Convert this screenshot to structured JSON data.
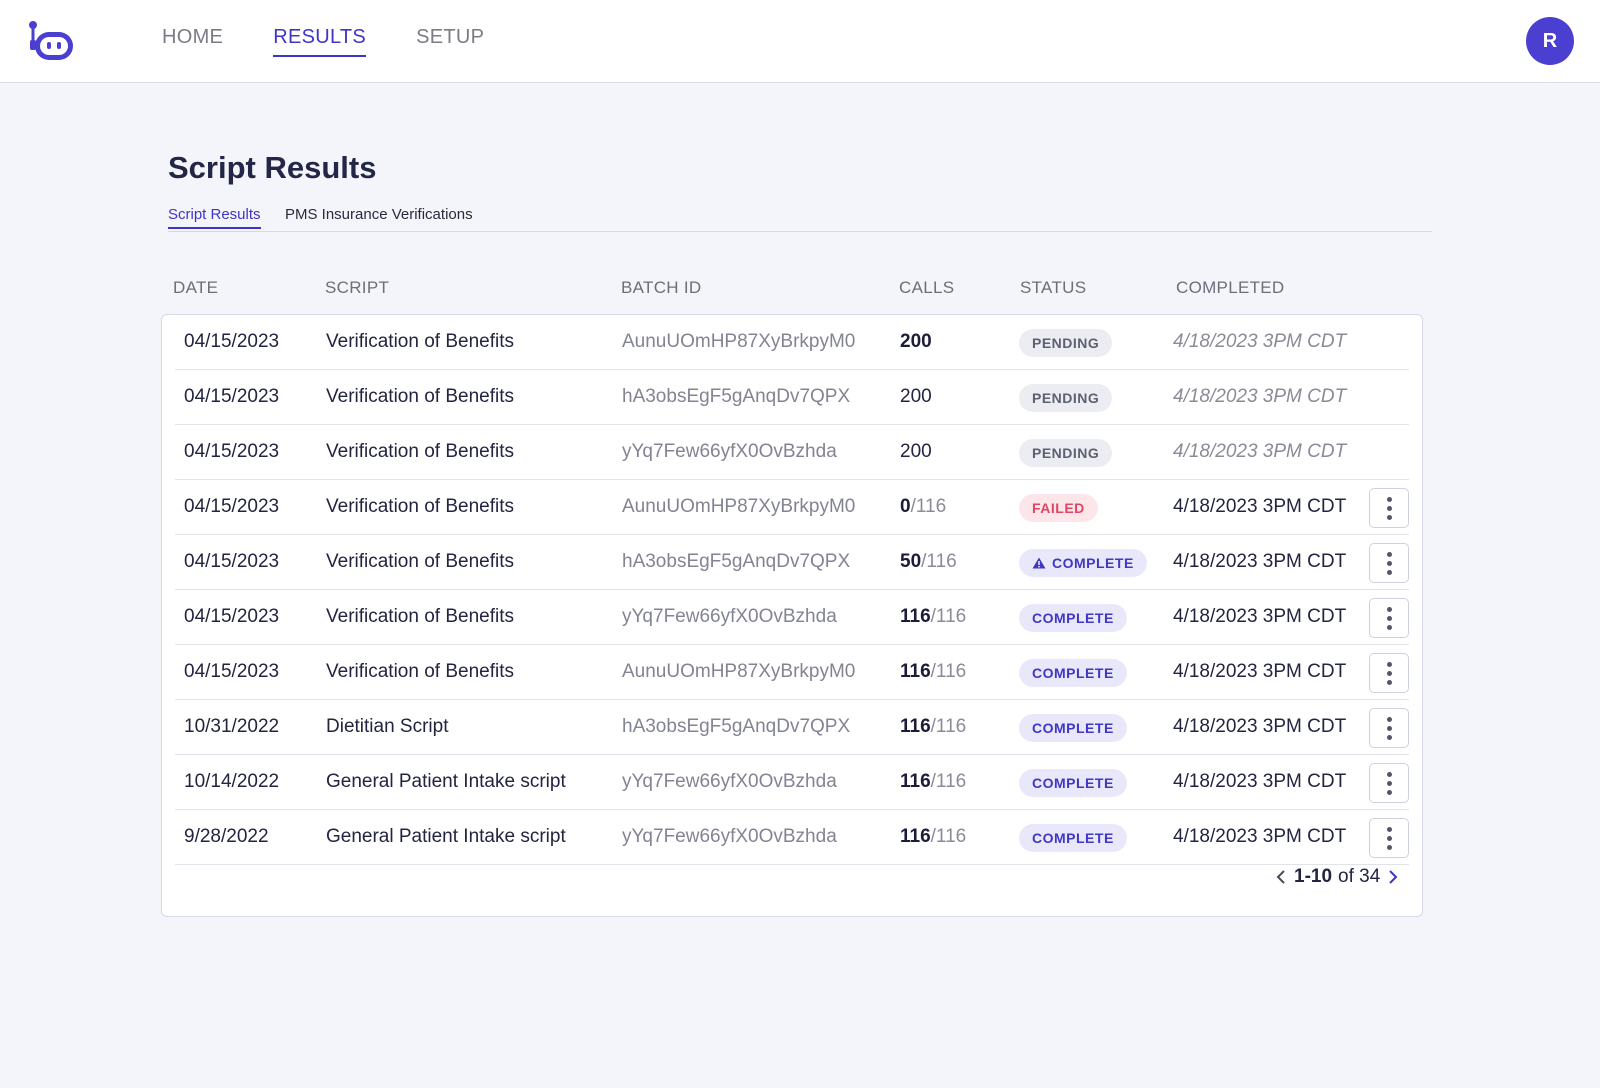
{
  "nav": {
    "items": [
      {
        "label": "HOME",
        "active": false
      },
      {
        "label": "RESULTS",
        "active": true
      },
      {
        "label": "SETUP",
        "active": false
      }
    ],
    "avatar_initial": "R"
  },
  "page": {
    "title": "Script Results",
    "tabs": [
      {
        "label": "Script Results",
        "active": true
      },
      {
        "label": "PMS Insurance Verifications",
        "active": false
      }
    ]
  },
  "table": {
    "columns": {
      "date": "DATE",
      "script": "SCRIPT",
      "batch_id": "BATCH ID",
      "calls": "CALLS",
      "status": "STATUS",
      "completed": "COMPLETED"
    },
    "rows": [
      {
        "date": "04/15/2023",
        "script": "Verification of Benefits",
        "batch_id": "AunuUOmHP87XyBrkpyM0",
        "calls_done": "200",
        "calls_total": "",
        "status": "PENDING",
        "completed": "4/18/2023 3PM CDT"
      },
      {
        "date": "04/15/2023",
        "script": "Verification of Benefits",
        "batch_id": "hA3obsEgF5gAnqDv7QPX",
        "calls_done": "200",
        "calls_total": "",
        "status": "PENDING",
        "completed": "4/18/2023 3PM CDT"
      },
      {
        "date": "04/15/2023",
        "script": "Verification of Benefits",
        "batch_id": "yYq7Few66yfX0OvBzhda",
        "calls_done": "200",
        "calls_total": "",
        "status": "PENDING",
        "completed": "4/18/2023 3PM CDT"
      },
      {
        "date": "04/15/2023",
        "script": "Verification of Benefits",
        "batch_id": "AunuUOmHP87XyBrkpyM0",
        "calls_done": "0",
        "calls_total": "/116",
        "status": "FAILED",
        "completed": "4/18/2023 3PM CDT"
      },
      {
        "date": "04/15/2023",
        "script": "Verification of Benefits",
        "batch_id": "hA3obsEgF5gAnqDv7QPX",
        "calls_done": "50",
        "calls_total": "/116",
        "status": "COMPLETE",
        "completed": "4/18/2023 3PM CDT"
      },
      {
        "date": "04/15/2023",
        "script": "Verification of Benefits",
        "batch_id": "yYq7Few66yfX0OvBzhda",
        "calls_done": "116",
        "calls_total": "/116",
        "status": "COMPLETE",
        "completed": "4/18/2023 3PM CDT"
      },
      {
        "date": "04/15/2023",
        "script": "Verification of Benefits",
        "batch_id": "AunuUOmHP87XyBrkpyM0",
        "calls_done": "116",
        "calls_total": "/116",
        "status": "COMPLETE",
        "completed": "4/18/2023 3PM CDT"
      },
      {
        "date": "10/31/2022",
        "script": "Dietitian Script",
        "batch_id": "hA3obsEgF5gAnqDv7QPX",
        "calls_done": "116",
        "calls_total": "/116",
        "status": "COMPLETE",
        "completed": "4/18/2023 3PM CDT"
      },
      {
        "date": "10/14/2022",
        "script": "General Patient Intake script",
        "batch_id": "yYq7Few66yfX0OvBzhda",
        "calls_done": "116",
        "calls_total": "/116",
        "status": "COMPLETE",
        "completed": "4/18/2023 3PM CDT"
      },
      {
        "date": "9/28/2022",
        "script": "General Patient Intake script",
        "batch_id": "yYq7Few66yfX0OvBzhda",
        "calls_done": "116",
        "calls_total": "/116",
        "status": "COMPLETE",
        "completed": "4/18/2023 3PM CDT"
      }
    ]
  },
  "pagination": {
    "range": "1-10",
    "of_label": "of 34"
  },
  "colors": {
    "accent": "#3f34c9",
    "pending_bg": "#ebedf2",
    "failed_bg": "#fde6ea",
    "complete_bg": "#e9e8fb"
  },
  "icons": {
    "logo": "robot-logo-icon",
    "warning": "warning-triangle-icon",
    "row_menu": "more-vertical-icon",
    "prev": "chevron-left-icon",
    "next": "chevron-right-icon"
  }
}
